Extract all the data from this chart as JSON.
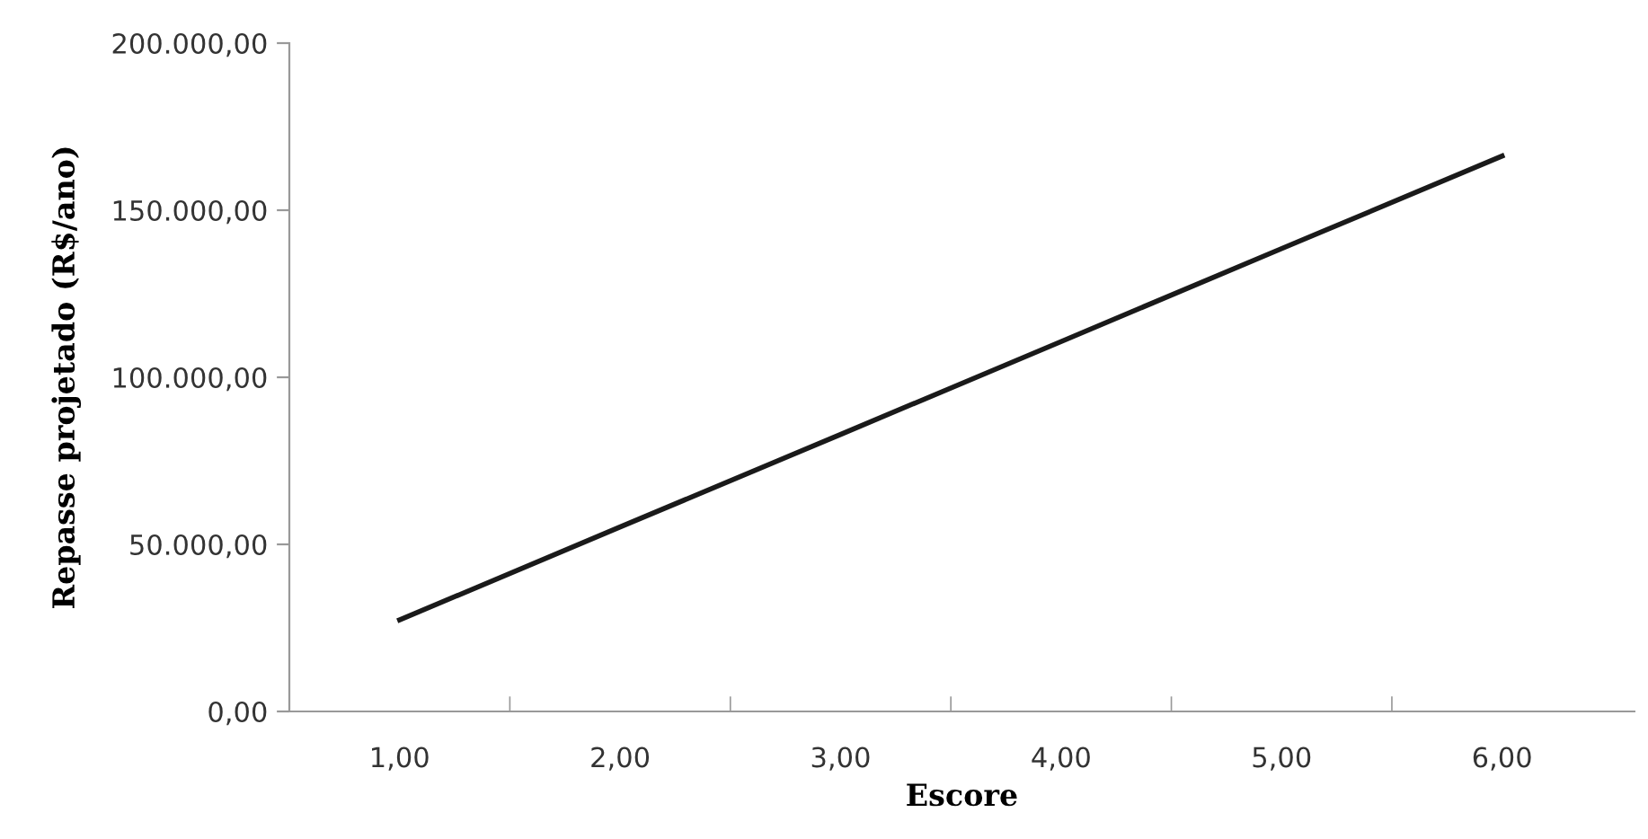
{
  "chart_data": {
    "type": "line",
    "xlabel": "Escore",
    "ylabel": "Repasse projetado (R$/ano)",
    "categories": [
      "1,00",
      "2,00",
      "3,00",
      "4,00",
      "5,00",
      "6,00"
    ],
    "series": [
      {
        "color": "#1a1a1a",
        "values": [
          27400,
          55200,
          82900,
          110700,
          138500,
          166200
        ]
      }
    ],
    "ylim": [
      0,
      200000
    ],
    "yticks": [
      {
        "value": 0,
        "label": "0,00"
      },
      {
        "value": 50000,
        "label": "50.000,00"
      },
      {
        "value": 100000,
        "label": "100.000,00"
      },
      {
        "value": 150000,
        "label": "150.000,00"
      },
      {
        "value": 200000,
        "label": "200.000,00"
      }
    ],
    "grid": false,
    "marker": "none",
    "line_style": "solid"
  }
}
